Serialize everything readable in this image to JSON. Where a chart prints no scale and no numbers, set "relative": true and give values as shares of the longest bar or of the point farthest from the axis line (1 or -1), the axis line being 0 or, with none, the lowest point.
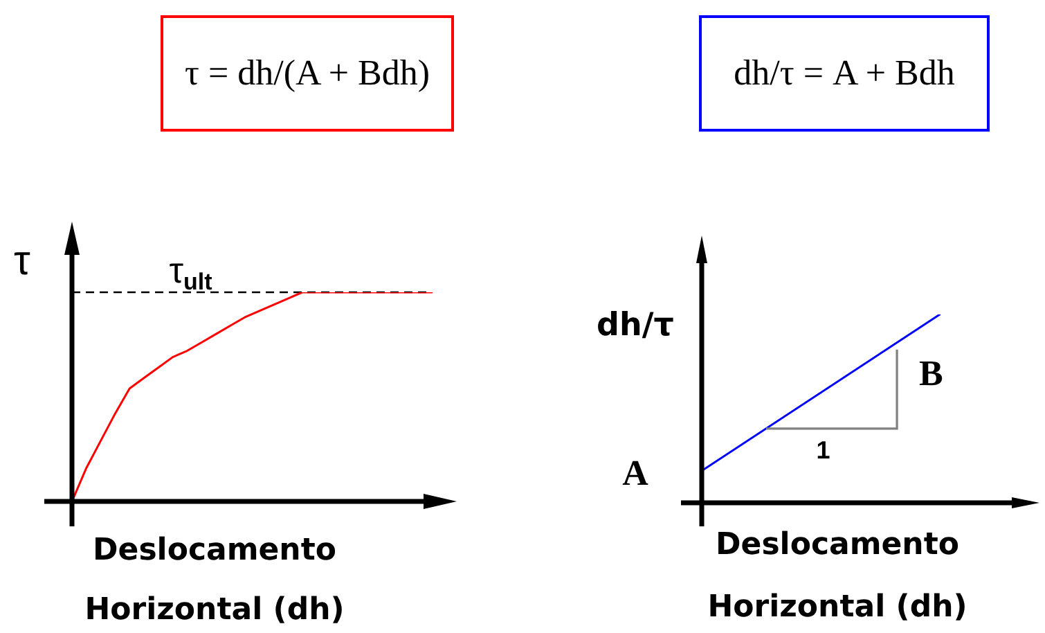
{
  "chart_data": [
    {
      "type": "line",
      "title": "τ = dh/(A + Bdh)",
      "ylabel": "τ",
      "xlabel": "Deslocamento\nHorizontal (dh)",
      "relative": true,
      "categories": [
        null,
        null,
        null,
        null,
        null,
        null,
        null,
        null,
        null,
        null,
        null,
        null,
        null,
        null,
        null,
        null,
        null,
        null,
        null,
        null,
        null,
        null,
        null,
        null,
        null,
        null
      ],
      "series": [
        {
          "color": "#ff0000",
          "values": [
            0,
            0.16,
            0.29,
            0.42,
            0.54,
            0.59,
            0.64,
            0.69,
            0.72,
            0.76,
            0.8,
            0.84,
            0.88,
            0.91,
            0.94,
            0.97,
            1,
            1,
            1,
            1,
            1,
            1,
            1,
            1,
            1,
            1
          ]
        }
      ],
      "ref_lines": [
        {
          "axis": "y",
          "value": 1,
          "label": "τ$_{ult}$",
          "line_style": "dashed",
          "color": "#000000"
        }
      ]
    },
    {
      "type": "line",
      "title": "dh/τ = A + Bdh",
      "ylabel": "dh/τ",
      "xlabel": "Deslocamento\nHorizontal (dh)",
      "relative": true,
      "categories": [
        null,
        null
      ],
      "series": [
        {
          "color": "#0000ff",
          "values": [
            0.17,
            1
          ]
        }
      ],
      "annotations": [
        "A",
        "B",
        "1"
      ]
    }
  ]
}
